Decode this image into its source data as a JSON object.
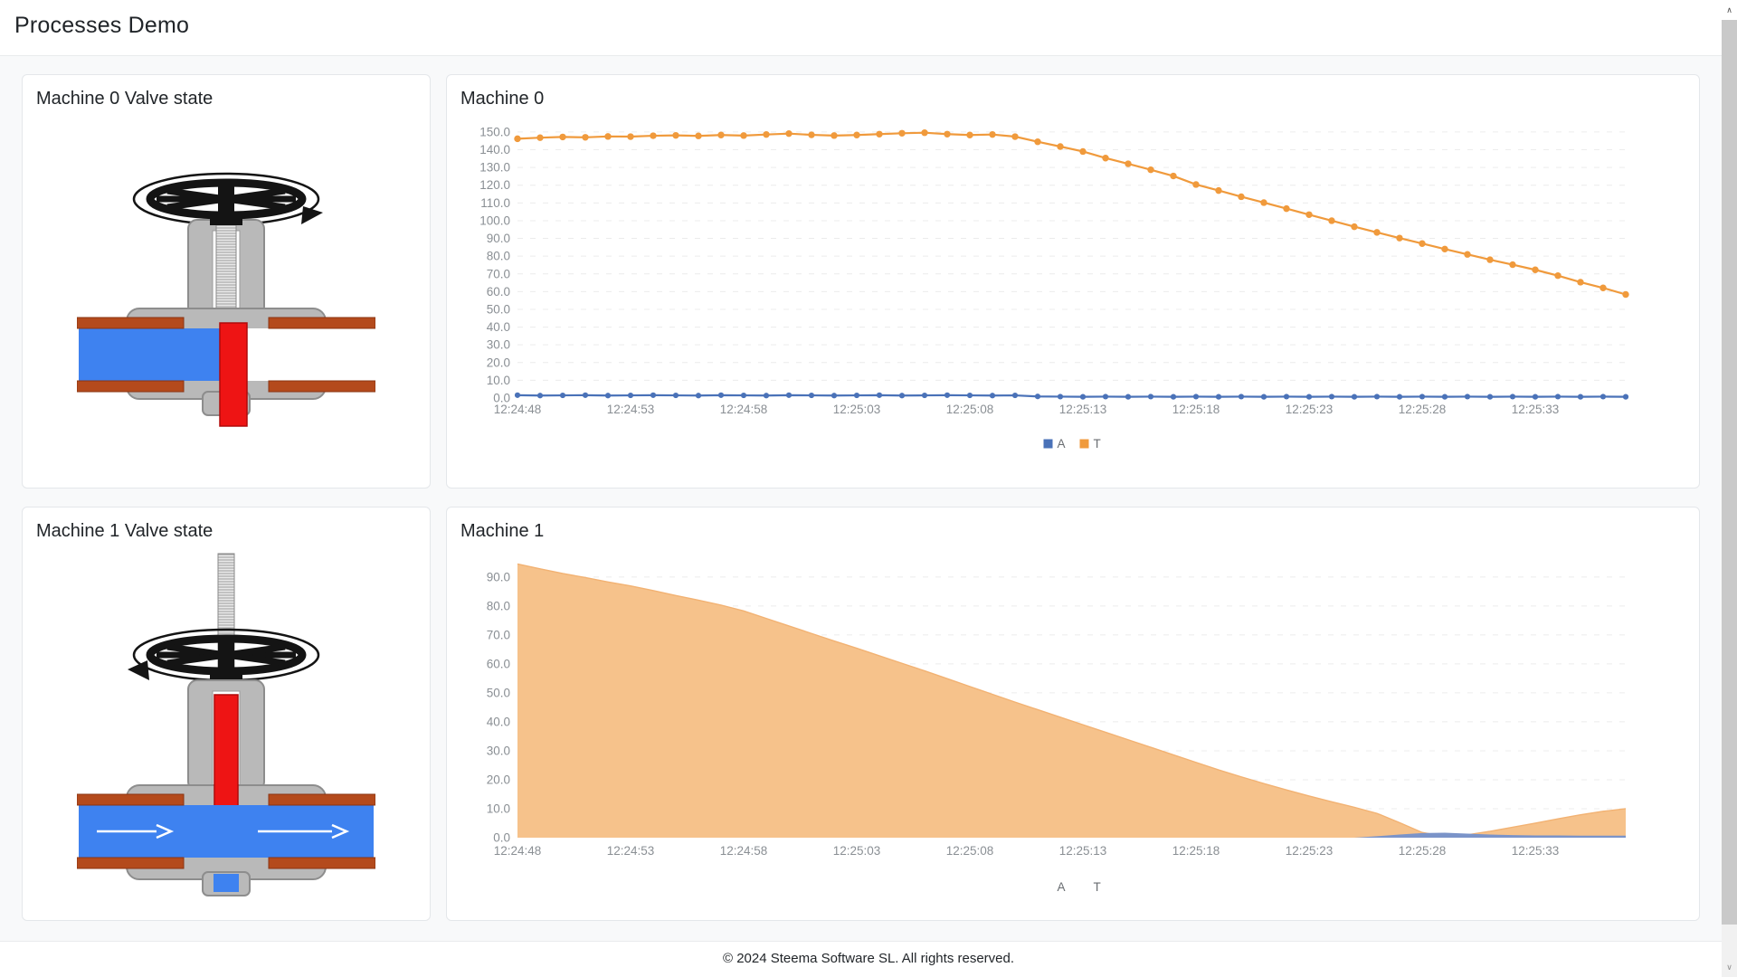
{
  "header": {
    "title": "Processes Demo"
  },
  "cards": {
    "valve0": {
      "title": "Machine 0 Valve state",
      "valve_state": "closed"
    },
    "valve1": {
      "title": "Machine 1 Valve state",
      "valve_state": "open"
    }
  },
  "footer": {
    "copyright": "© 2024 Steema Software SL. All rights reserved."
  },
  "colors": {
    "series_a_blue": "#4a72b8",
    "series_t_orange": "#f09a3c",
    "area_fill_orange": "#f6c28b",
    "area_fill_blue": "#7b94c9",
    "pipe_water_blue": "#3e82f0",
    "flange_red_brown": "#b44a1c",
    "valve_gate_red": "#ee1414",
    "valve_body_gray": "#b9b9b9"
  },
  "chart_data": [
    {
      "id": "machine0",
      "type": "line",
      "title": "Machine 0",
      "x_labels": [
        "12:24:48",
        "12:24:53",
        "12:24:58",
        "12:25:03",
        "12:25:08",
        "12:25:13",
        "12:25:18",
        "12:25:23",
        "12:25:28",
        "12:25:33"
      ],
      "x_label_every": 5,
      "ylim": [
        0,
        152
      ],
      "ytick_step": 10,
      "ytick_max": 150,
      "grid": "dashed-horizontal",
      "legend_position": "bottom-center",
      "legend": [
        {
          "label": "A",
          "color": "#4a72b8"
        },
        {
          "label": "T",
          "color": "#f09a3c"
        }
      ],
      "series": [
        {
          "name": "A",
          "color": "#4a72b8",
          "marker_r": 3.1,
          "values": [
            1.6,
            1.4,
            1.5,
            1.6,
            1.4,
            1.5,
            1.6,
            1.5,
            1.4,
            1.6,
            1.5,
            1.4,
            1.6,
            1.5,
            1.4,
            1.5,
            1.6,
            1.4,
            1.5,
            1.6,
            1.5,
            1.4,
            1.5,
            0.9,
            0.8,
            0.7,
            0.8,
            0.7,
            0.8,
            0.7,
            0.8,
            0.7,
            0.8,
            0.7,
            0.8,
            0.7,
            0.8,
            0.7,
            0.8,
            0.7,
            0.8,
            0.7,
            0.8,
            0.7,
            0.8,
            0.7,
            0.8,
            0.7,
            0.8,
            0.7
          ]
        },
        {
          "name": "T",
          "color": "#f09a3c",
          "marker_r": 3.7,
          "values": [
            146.2,
            146.8,
            147.2,
            147.0,
            147.5,
            147.4,
            147.9,
            148.1,
            147.8,
            148.3,
            148.0,
            148.6,
            149.1,
            148.4,
            148.0,
            148.3,
            148.8,
            149.3,
            149.6,
            148.8,
            148.3,
            148.6,
            147.4,
            144.5,
            141.8,
            139.0,
            135.3,
            132.1,
            128.7,
            125.2,
            120.4,
            117.0,
            113.5,
            110.2,
            106.8,
            103.4,
            100.0,
            96.6,
            93.4,
            90.2,
            87.1,
            84.0,
            81.0,
            78.0,
            75.2,
            72.3,
            69.0,
            65.3,
            62.1,
            58.4
          ]
        }
      ]
    },
    {
      "id": "machine1",
      "type": "area",
      "title": "Machine 1",
      "x_labels": [
        "12:24:48",
        "12:24:53",
        "12:24:58",
        "12:25:03",
        "12:25:08",
        "12:25:13",
        "12:25:18",
        "12:25:23",
        "12:25:28",
        "12:25:33"
      ],
      "x_label_every": 5,
      "ylim": [
        0,
        96.5
      ],
      "ytick_step": 10,
      "ytick_max": 90,
      "grid": "dashed-horizontal",
      "legend_position": "bottom-center",
      "legend": [
        {
          "label": "A",
          "color": "#ffffff"
        },
        {
          "label": "T",
          "color": "#ffffff"
        }
      ],
      "series": [
        {
          "name": "T",
          "color": "#f6c28b",
          "edge": "#f2b273",
          "values": [
            94.5,
            92.8,
            91.2,
            89.8,
            88.3,
            86.9,
            85.3,
            83.6,
            82.0,
            80.3,
            78.3,
            75.7,
            73.1,
            70.5,
            67.9,
            65.4,
            62.8,
            60.2,
            57.6,
            54.9,
            52.2,
            49.5,
            46.8,
            44.2,
            41.6,
            39.0,
            36.4,
            33.8,
            31.2,
            28.6,
            26.0,
            23.4,
            21.0,
            18.7,
            16.5,
            14.4,
            12.4,
            10.5,
            8.4,
            5.2,
            1.8,
            0.4,
            1.0,
            2.2,
            3.6,
            5.0,
            6.5,
            7.9,
            9.1,
            10.0
          ]
        },
        {
          "name": "A",
          "color": "#7b94c9",
          "values": [
            0,
            0,
            0,
            0,
            0,
            0,
            0,
            0,
            0,
            0,
            0,
            0,
            0,
            0,
            0,
            0,
            0,
            0,
            0,
            0,
            0,
            0,
            0,
            0,
            0,
            0,
            0,
            0,
            0,
            0,
            0,
            0,
            0,
            0,
            0,
            0,
            0,
            0,
            0.5,
            1.1,
            1.6,
            1.7,
            1.4,
            1.1,
            0.9,
            0.8,
            0.8,
            0.7,
            0.7,
            0.7
          ]
        }
      ]
    }
  ]
}
